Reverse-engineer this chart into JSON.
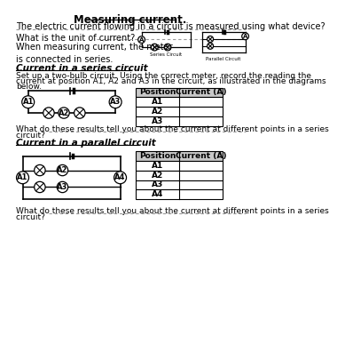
{
  "title": "Measuring current.",
  "bg_color": "#ffffff",
  "q1": "The electric current flowing in a circuit is measured using what device?",
  "q2": "What is the unit of current? ",
  "q3_text": "When measuring current, the meter\nis connected in series.",
  "series_section_title": "Current in a series circuit",
  "series_desc_1": "Set up a two-bulb circuit. Using the correct meter, record the reading the",
  "series_desc_2": "current at position A1, A2 and A3 in the circuit, as illustrated in the diagrams",
  "series_desc_3": "below.",
  "series_positions": [
    "A1",
    "A2",
    "A3"
  ],
  "series_q1": "What do these results tell you about the current at different points in a series",
  "series_q2": "circuit? ",
  "parallel_section_title": "Current in a parallel circuit",
  "parallel_positions": [
    "A1",
    "A2",
    "A3",
    "A4"
  ],
  "parallel_q1": "What do these results tell you about the current at different points in a series",
  "parallel_q2": "circuit? ",
  "table_header": [
    "Position",
    "Current (A)"
  ],
  "table_fill": "#c8c8c8"
}
